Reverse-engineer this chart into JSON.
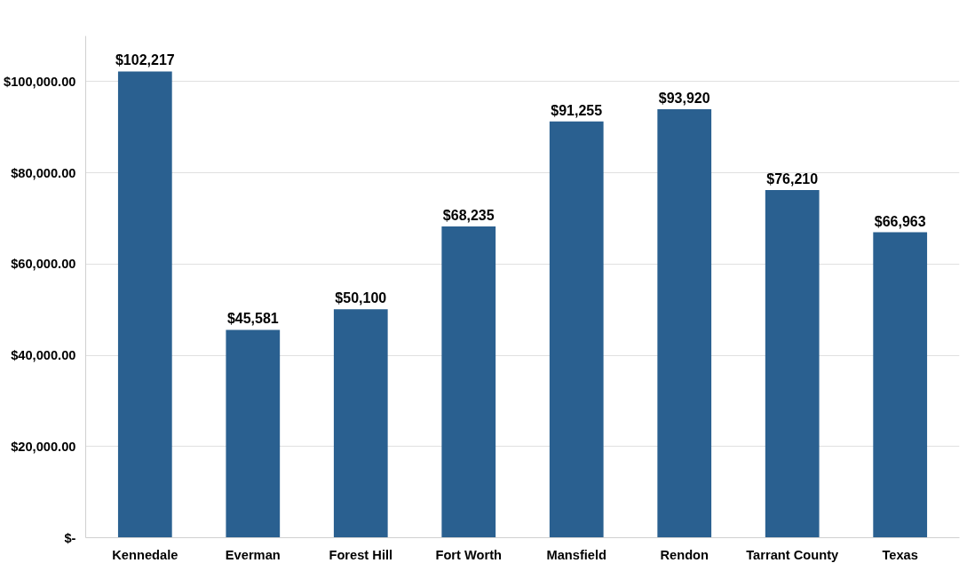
{
  "chart_data": {
    "type": "bar",
    "categories": [
      "Kennedale",
      "Everman",
      "Forest Hill",
      "Fort Worth",
      "Mansfield",
      "Rendon",
      "Tarrant County",
      "Texas"
    ],
    "values": [
      102217,
      45581,
      50100,
      68235,
      91255,
      93920,
      76210,
      66963
    ],
    "color": "#2a6090",
    "value_labels": [
      "$102,217",
      "$45,581",
      "$50,100",
      "$68,235",
      "$91,255",
      "$93,920",
      "$76,210",
      "$66,963"
    ],
    "ylim": [
      0,
      110000
    ],
    "yticks": [
      {
        "value": 0,
        "label": "$-"
      },
      {
        "value": 20000,
        "label": "$20,000.00"
      },
      {
        "value": 40000,
        "label": "$40,000.00"
      },
      {
        "value": 60000,
        "label": "$60,000.00"
      },
      {
        "value": 80000,
        "label": "$80,000.00"
      },
      {
        "value": 100000,
        "label": "$100,000.00"
      }
    ],
    "grid": "y"
  }
}
